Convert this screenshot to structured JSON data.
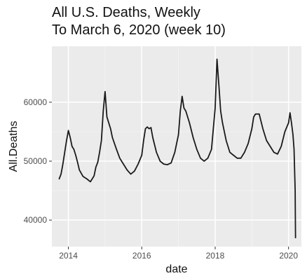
{
  "chart_data": {
    "type": "line",
    "title": "All U.S. Deaths, Weekly",
    "subtitle": "To March 6, 2020 (week 10)",
    "xlabel": "date",
    "ylabel": "All.Deaths",
    "x_ticks": [
      2014,
      2016,
      2018,
      2020
    ],
    "y_ticks": [
      40000,
      50000,
      60000
    ],
    "ylim": [
      35500,
      69500
    ],
    "xlim": [
      2013.55,
      2020.35
    ],
    "grid": true,
    "colors": {
      "panel_background": "#ebebeb",
      "grid_major": "#ffffff",
      "grid_minor": "#f4f4f4",
      "line": "#1a1a1a"
    },
    "series": [
      {
        "x": [
          2013.75,
          2013.8,
          2013.85,
          2013.9,
          2013.95,
          2014.0,
          2014.05,
          2014.1,
          2014.15,
          2014.2,
          2014.25,
          2014.3,
          2014.4,
          2014.5,
          2014.6,
          2014.7,
          2014.75,
          2014.8,
          2014.85,
          2014.9,
          2014.95,
          2015.0,
          2015.05,
          2015.1,
          2015.15,
          2015.2,
          2015.3,
          2015.4,
          2015.5,
          2015.6,
          2015.7,
          2015.8,
          2015.9,
          2016.0,
          2016.05,
          2016.1,
          2016.15,
          2016.2,
          2016.25,
          2016.3,
          2016.4,
          2016.5,
          2016.6,
          2016.7,
          2016.8,
          2016.9,
          2017.0,
          2017.05,
          2017.1,
          2017.15,
          2017.2,
          2017.3,
          2017.4,
          2017.5,
          2017.6,
          2017.7,
          2017.8,
          2017.9,
          2017.95,
          2018.0,
          2018.05,
          2018.1,
          2018.15,
          2018.2,
          2018.25,
          2018.3,
          2018.4,
          2018.5,
          2018.6,
          2018.7,
          2018.8,
          2018.9,
          2019.0,
          2019.05,
          2019.1,
          2019.15,
          2019.2,
          2019.3,
          2019.4,
          2019.5,
          2019.6,
          2019.7,
          2019.8,
          2019.9,
          2020.0,
          2020.04,
          2020.08,
          2020.12,
          2020.15,
          2020.18,
          2020.19
        ],
        "y": [
          47000,
          47800,
          49500,
          51500,
          53500,
          55200,
          54000,
          52500,
          52000,
          51000,
          49800,
          48500,
          47400,
          47000,
          46500,
          47500,
          49000,
          49800,
          51500,
          53500,
          58500,
          61800,
          57500,
          56500,
          55500,
          54000,
          52200,
          50500,
          49500,
          48500,
          47800,
          48300,
          49500,
          51000,
          53500,
          55500,
          55800,
          55500,
          55700,
          54000,
          51500,
          50000,
          49500,
          49400,
          49700,
          51500,
          54500,
          58500,
          61000,
          59000,
          58500,
          56500,
          54000,
          52000,
          50500,
          50000,
          50500,
          52000,
          55500,
          59000,
          67300,
          63000,
          58500,
          56500,
          55000,
          53500,
          51500,
          51000,
          50500,
          50500,
          51500,
          53000,
          55500,
          57500,
          58000,
          58000,
          58000,
          55500,
          53500,
          52500,
          51500,
          51200,
          52500,
          55000,
          56500,
          58200,
          56500,
          54500,
          52000,
          45000,
          37000
        ]
      }
    ]
  }
}
